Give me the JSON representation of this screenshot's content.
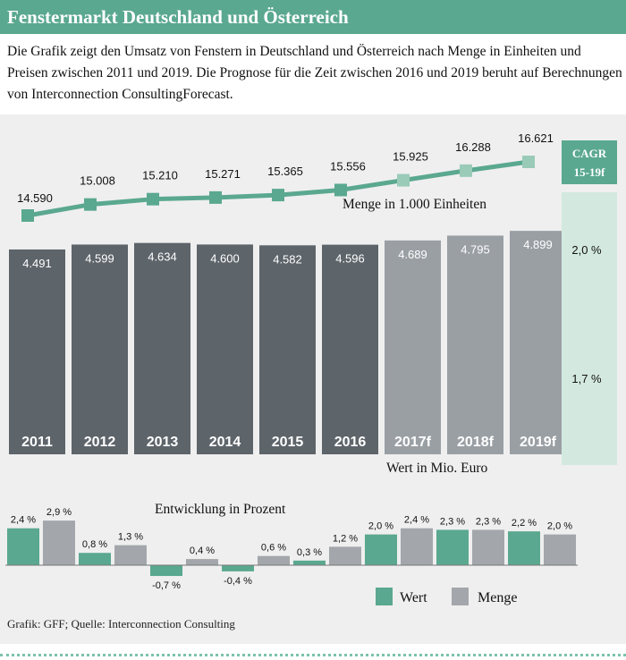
{
  "header": {
    "title": "Fenstermarkt Deutschland und Österreich"
  },
  "description": "Die Grafik zeigt den Umsatz von Fenstern in Deutschland und Österreich nach Menge in Einheiten und Preisen zwischen 2011 und 2019. Die Prognose für die Zeit zwischen 2016 und 2019 beruht auf Berechnungen von Interconnection ConsultingForecast.",
  "source": "Grafik: GFF; Quelle: Interconnection Consulting",
  "colors": {
    "teal": "#5aa88f",
    "teal_light": "#9acbb8",
    "dark_bar": "#5d646a",
    "forecast_bar": "#9a9fa4",
    "gray": "#a3a7ab",
    "cagr_panel": "#d3e9df"
  },
  "chart_data": [
    {
      "type": "line",
      "title": "Menge in 1.000 Einheiten",
      "categories": [
        "2011",
        "2012",
        "2013",
        "2014",
        "2015",
        "2016",
        "2017f",
        "2018f",
        "2019f"
      ],
      "values": [
        14590,
        15008,
        15210,
        15271,
        15365,
        15556,
        15925,
        16288,
        16621
      ],
      "labels": [
        "14.590",
        "15.008",
        "15.210",
        "15.271",
        "15.365",
        "15.556",
        "15.925",
        "16.288",
        "16.621"
      ],
      "cagr": "2,0 %"
    },
    {
      "type": "bar",
      "title": "Wert in Mio. Euro",
      "categories": [
        "2011",
        "2012",
        "2013",
        "2014",
        "2015",
        "2016",
        "2017f",
        "2018f",
        "2019f"
      ],
      "values": [
        4491,
        4599,
        4634,
        4600,
        4582,
        4596,
        4689,
        4795,
        4899
      ],
      "labels": [
        "4.491",
        "4.599",
        "4.634",
        "4.600",
        "4.582",
        "4.596",
        "4.689",
        "4.795",
        "4.899"
      ],
      "cagr": "1,7 %"
    },
    {
      "type": "bar",
      "title": "Entwicklung in Prozent",
      "series": [
        {
          "name": "Wert",
          "values": [
            2.4,
            0.8,
            -0.7,
            -0.4,
            0.3,
            2.0,
            2.3,
            2.2
          ],
          "labels": [
            "2,4 %",
            "0,8 %",
            "-0,7 %",
            "-0,4 %",
            "0,3 %",
            "2,0 %",
            "2,3 %",
            "2,2 %"
          ]
        },
        {
          "name": "Menge",
          "values": [
            2.9,
            1.3,
            0.4,
            0.6,
            1.2,
            2.4,
            2.3,
            2.0
          ],
          "labels": [
            "2,9 %",
            "1,3 %",
            "0,4 %",
            "0,6 %",
            "1,2 %",
            "2,4 %",
            "2,3 %",
            "2,0 %"
          ]
        }
      ]
    }
  ],
  "cagr_label": [
    "CAGR",
    "15-19f"
  ]
}
